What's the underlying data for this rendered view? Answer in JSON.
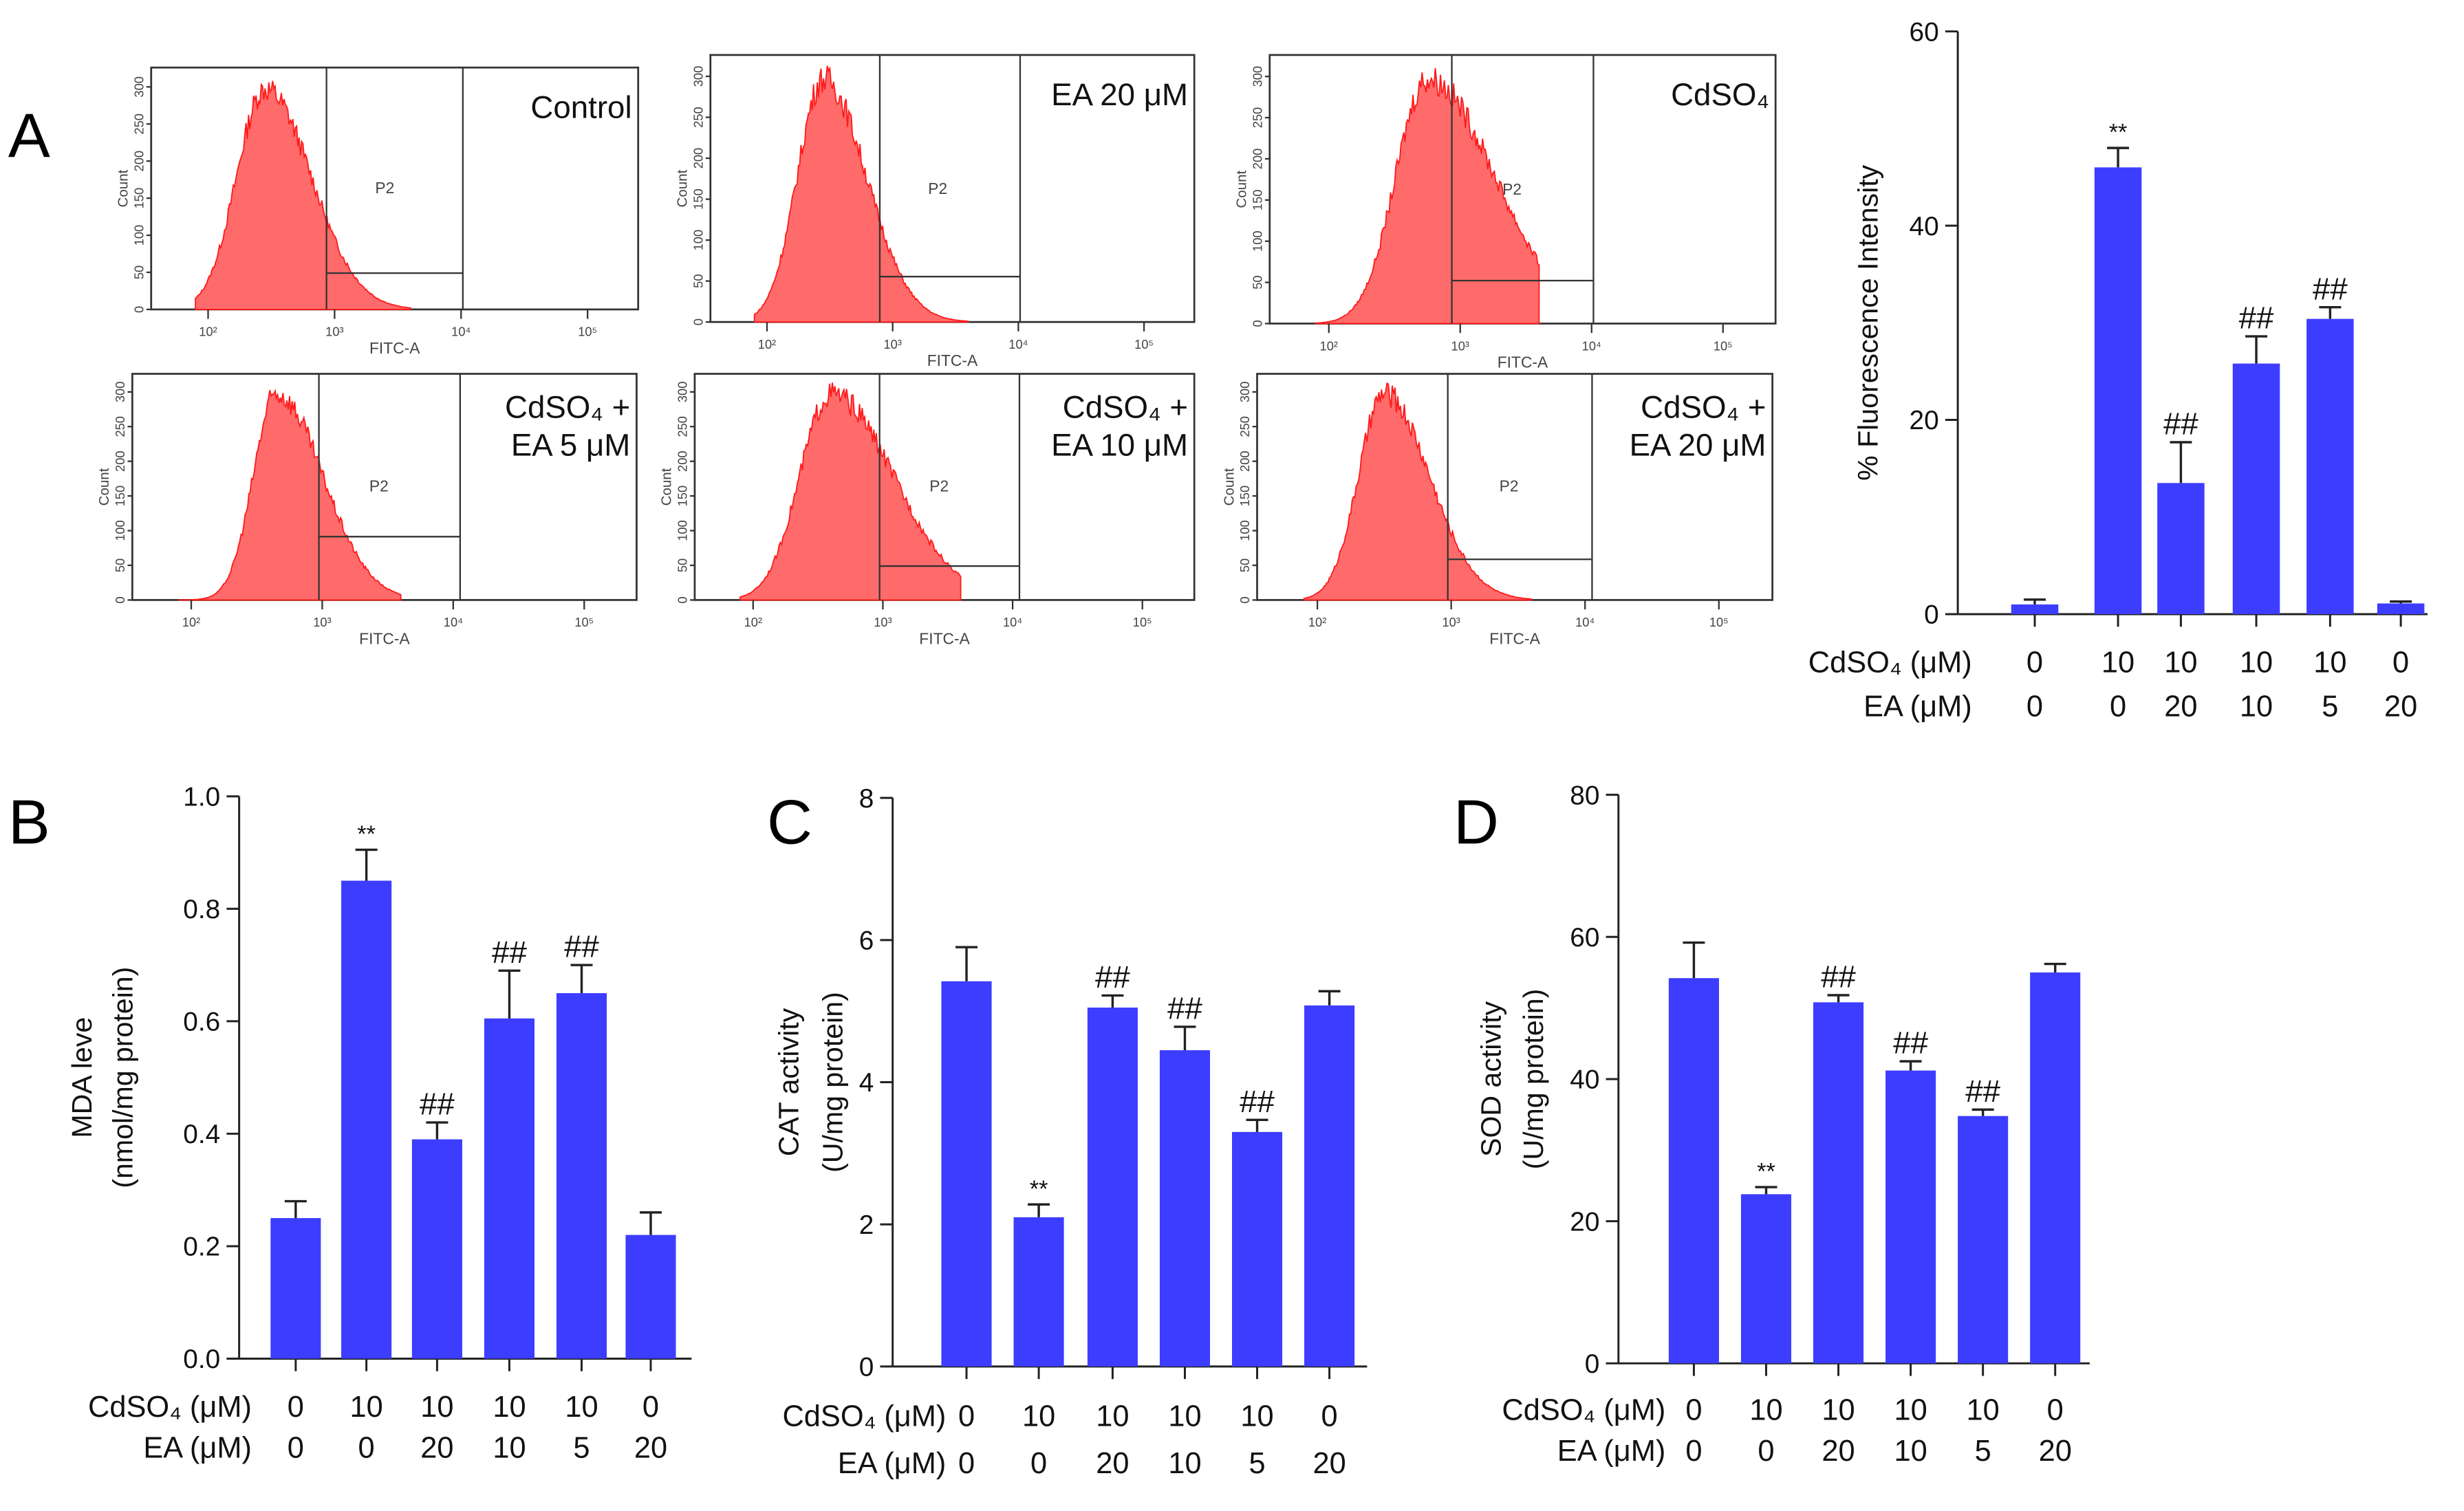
{
  "panel_letters": {
    "a": "A",
    "b": "B",
    "c": "C",
    "d": "D"
  },
  "flow_panels": [
    {
      "label_lines": [
        "Control"
      ],
      "gate": "P2",
      "ylabel": "Count",
      "xlabel": "FITC-A",
      "peak_log10": 2.45,
      "width_log10": 0.28,
      "tail": 0.15
    },
    {
      "label_lines": [
        "EA 20 μM"
      ],
      "gate": "P2",
      "ylabel": "Count",
      "xlabel": "FITC-A",
      "peak_log10": 2.45,
      "width_log10": 0.26,
      "tail": 0.15
    },
    {
      "label_lines": [
        "CdSO₄"
      ],
      "gate": "P2",
      "ylabel": "Count",
      "xlabel": "FITC-A",
      "peak_log10": 2.75,
      "width_log10": 0.3,
      "tail": 0.35
    },
    {
      "label_lines": [
        "CdSO₄ +",
        "EA 5 μM"
      ],
      "gate": "P2",
      "ylabel": "Count",
      "xlabel": "FITC-A",
      "peak_log10": 2.65,
      "width_log10": 0.22,
      "tail": 0.3
    },
    {
      "label_lines": [
        "CdSO₄ +",
        "EA 10 μM"
      ],
      "gate": "P2",
      "ylabel": "Count",
      "xlabel": "FITC-A",
      "peak_log10": 2.6,
      "width_log10": 0.3,
      "tail": 0.3
    },
    {
      "label_lines": [
        "CdSO₄ +",
        "EA 20 μM"
      ],
      "gate": "P2",
      "ylabel": "Count",
      "xlabel": "FITC-A",
      "peak_log10": 2.5,
      "width_log10": 0.24,
      "tail": 0.2
    }
  ],
  "flow_axis": {
    "y_ticks": [
      "0",
      "50",
      "100",
      "150",
      "200",
      "250",
      "300"
    ],
    "x_ticks": [
      "10²",
      "10³",
      "10⁴",
      "10⁵"
    ]
  },
  "row_labels": {
    "cdso4": "CdSO₄ (μM)",
    "ea": "EA (μM)"
  },
  "chart_data": [
    {
      "type": "bar",
      "panel": "A",
      "ylabel": "% Fluorescence Intensity",
      "ylim": [
        0,
        60
      ],
      "yticks": [
        "0",
        "20",
        "40",
        "60"
      ],
      "ytick_values": [
        0,
        20,
        40,
        60
      ],
      "categories_cdso4": [
        "0",
        "10",
        "10",
        "10",
        "10",
        "0"
      ],
      "categories_ea": [
        "0",
        "0",
        "20",
        "10",
        "5",
        "20"
      ],
      "values": [
        1.0,
        46.0,
        13.5,
        25.8,
        30.4,
        1.1
      ],
      "errors": [
        0.5,
        2.0,
        4.2,
        2.8,
        1.2,
        0.2
      ],
      "annotations": [
        "",
        "**",
        "##",
        "##",
        "##",
        ""
      ],
      "color": "#3d3dff"
    },
    {
      "type": "bar",
      "panel": "B",
      "ylabel": [
        "MDA leve",
        "(nmol/mg protein)"
      ],
      "ylim": [
        0,
        1.0
      ],
      "yticks": [
        "0.0",
        "0.2",
        "0.4",
        "0.6",
        "0.8",
        "1.0"
      ],
      "ytick_values": [
        0,
        0.2,
        0.4,
        0.6,
        0.8,
        1.0
      ],
      "categories_cdso4": [
        "0",
        "10",
        "10",
        "10",
        "10",
        "0"
      ],
      "categories_ea": [
        "0",
        "0",
        "20",
        "10",
        "5",
        "20"
      ],
      "values": [
        0.25,
        0.85,
        0.39,
        0.605,
        0.65,
        0.22
      ],
      "errors": [
        0.03,
        0.055,
        0.03,
        0.085,
        0.05,
        0.04
      ],
      "annotations": [
        "",
        "**",
        "##",
        "##",
        "##",
        ""
      ],
      "color": "#3d3dff"
    },
    {
      "type": "bar",
      "panel": "C",
      "ylabel": [
        "CAT activity",
        "(U/mg protein)"
      ],
      "ylim": [
        0,
        8
      ],
      "yticks": [
        "0",
        "2",
        "4",
        "6",
        "8"
      ],
      "ytick_values": [
        0,
        2,
        4,
        6,
        8
      ],
      "categories_cdso4": [
        "0",
        "10",
        "10",
        "10",
        "10",
        "0"
      ],
      "categories_ea": [
        "0",
        "0",
        "20",
        "10",
        "5",
        "20"
      ],
      "values": [
        5.42,
        2.1,
        5.05,
        4.45,
        3.3,
        5.08
      ],
      "errors": [
        0.48,
        0.18,
        0.17,
        0.33,
        0.17,
        0.2
      ],
      "annotations": [
        "",
        "**",
        "##",
        "##",
        "##",
        ""
      ],
      "color": "#3d3dff"
    },
    {
      "type": "bar",
      "panel": "D",
      "ylabel": [
        "SOD activity",
        "(U/mg protein)"
      ],
      "ylim": [
        0,
        80
      ],
      "yticks": [
        "0",
        "20",
        "40",
        "60",
        "80"
      ],
      "ytick_values": [
        0,
        20,
        40,
        60,
        80
      ],
      "categories_cdso4": [
        "0",
        "10",
        "10",
        "10",
        "10",
        "0"
      ],
      "categories_ea": [
        "0",
        "0",
        "20",
        "10",
        "5",
        "20"
      ],
      "values": [
        54.2,
        23.8,
        50.8,
        41.2,
        34.8,
        55.0
      ],
      "errors": [
        5.0,
        1.0,
        1.0,
        1.3,
        0.9,
        1.2
      ],
      "annotations": [
        "",
        "**",
        "##",
        "##",
        "##",
        ""
      ],
      "color": "#3d3dff"
    }
  ]
}
